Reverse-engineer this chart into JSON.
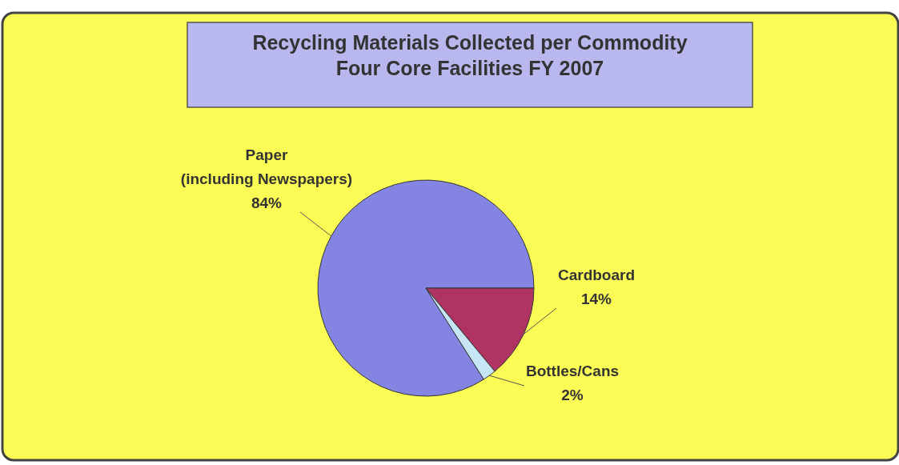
{
  "chart_data": {
    "type": "pie",
    "title": "Recycling Materials Collected per Commodity\nFour Core Facilities FY 2007",
    "categories": [
      "Paper\n(including Newspapers)",
      "Cardboard",
      "Bottles/Cans"
    ],
    "values": [
      84,
      14,
      2
    ],
    "colors": [
      "#8484e2",
      "#b03462",
      "#c6e6f6"
    ],
    "value_labels": [
      "84%",
      "14%",
      "2%"
    ]
  }
}
